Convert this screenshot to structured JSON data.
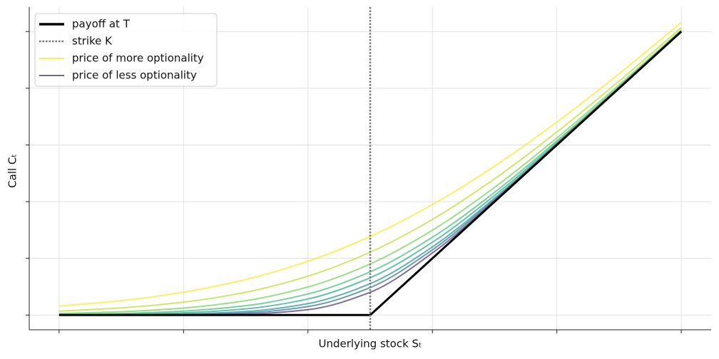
{
  "chart_data": {
    "type": "line",
    "x_label": "Underlying stock Sₜ",
    "y_label": "Call Cₜ",
    "x": [
      0,
      10,
      20,
      30,
      40,
      50,
      60,
      70,
      80,
      90,
      100
    ],
    "xlim": [
      -4.8,
      104.8
    ],
    "ylim": [
      -2.6,
      54.3
    ],
    "xticks": [
      0,
      20,
      40,
      60,
      80,
      100
    ],
    "yticks": [
      0,
      10,
      20,
      30,
      40,
      50
    ],
    "grid": true,
    "legend": "upper left",
    "strike": {
      "name": "strike K",
      "value": 50,
      "color": "#777777"
    },
    "series": [
      {
        "name": "payoff at T",
        "color": "#000000",
        "values": [
          0,
          0,
          0,
          0,
          0,
          0,
          10,
          20,
          30,
          40,
          50
        ]
      },
      {
        "name": "price of more optionality",
        "color": "#fde725",
        "values": [
          1.58,
          2.54,
          4.03,
          6.27,
          9.48,
          13.86,
          19.48,
          26.27,
          34.03,
          42.54,
          51.58
        ]
      },
      {
        "color": "#b8de29",
        "values": [
          0.69,
          1.26,
          2.28,
          4.03,
          6.86,
          11.09,
          16.86,
          24.03,
          32.28,
          41.26,
          50.69
        ]
      },
      {
        "color": "#74d055",
        "values": [
          0.28,
          0.59,
          1.23,
          2.53,
          4.95,
          9.01,
          14.95,
          22.53,
          31.23,
          40.59,
          50.28
        ]
      },
      {
        "color": "#3dbc74",
        "values": [
          0.12,
          0.29,
          0.7,
          1.65,
          3.72,
          7.62,
          13.72,
          21.65,
          30.7,
          40.29,
          50.12
        ]
      },
      {
        "color": "#22a884",
        "values": [
          0.05,
          0.14,
          0.4,
          1.09,
          2.84,
          6.58,
          12.84,
          21.09,
          30.4,
          40.14,
          50.05
        ]
      },
      {
        "color": "#21908d",
        "values": [
          0.02,
          0.05,
          0.19,
          0.63,
          2.02,
          5.54,
          12.02,
          20.63,
          30.19,
          40.05,
          50.02
        ]
      },
      {
        "color": "#2c728e",
        "values": [
          0.01,
          0.02,
          0.1,
          0.39,
          1.5,
          4.85,
          11.5,
          20.39,
          30.1,
          40.02,
          50.01
        ]
      },
      {
        "name": "price of less optionality",
        "color": "#46327e",
        "values": [
          0,
          0.01,
          0.03,
          0.18,
          0.95,
          4.02,
          10.95,
          20.18,
          30.03,
          40.01,
          50
        ]
      }
    ]
  }
}
